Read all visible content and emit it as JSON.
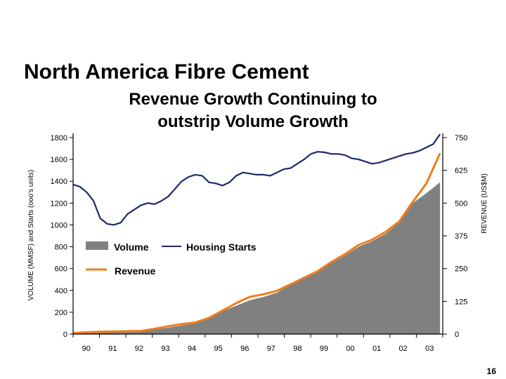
{
  "slide": {
    "title": "North America Fibre Cement",
    "subtitle_lines": [
      "Revenue Growth Continuing to",
      "outstrip Volume Growth"
    ],
    "page_number": "16"
  },
  "chart_data": {
    "type": "area",
    "x_tick_labels": [
      "90",
      "91",
      "92",
      "93",
      "94",
      "95",
      "96",
      "97",
      "98",
      "99",
      "00",
      "01",
      "02",
      "03"
    ],
    "x_range": [
      1990.0,
      2003.6
    ],
    "y_left": {
      "label": "VOLUME (MMSF) and Starts (ooo's units)",
      "range": [
        0,
        1800
      ],
      "ticks": [
        "0",
        "200",
        "400",
        "600",
        "800",
        "1000",
        "1200",
        "1400",
        "1600",
        "1800"
      ]
    },
    "y_right": {
      "label": "REVENUE (US$M)",
      "range": [
        0,
        750
      ],
      "ticks": [
        "0",
        "125",
        "250",
        "375",
        "500",
        "625",
        "750"
      ]
    },
    "grid": false,
    "colors": {
      "volume": "#808080",
      "housing_starts": "#1b2a6b",
      "revenue": "#f07d1a",
      "axis": "#000000"
    },
    "legend": [
      {
        "key": "volume",
        "label": "Volume",
        "marker": "area"
      },
      {
        "key": "housing_starts",
        "label": "Housing Starts",
        "marker": "line"
      },
      {
        "key": "revenue",
        "label": "Revenue",
        "marker": "line"
      }
    ],
    "series": [
      {
        "name": "Volume",
        "key": "volume",
        "kind": "area",
        "axis": "left",
        "x": [
          1990.0,
          1990.5,
          1991.0,
          1991.5,
          1992.0,
          1992.5,
          1993.0,
          1993.5,
          1994.0,
          1994.5,
          1995.0,
          1995.5,
          1996.0,
          1996.5,
          1997.0,
          1997.5,
          1998.0,
          1998.5,
          1999.0,
          1999.5,
          2000.0,
          2000.5,
          2001.0,
          2001.5,
          2002.0,
          2002.5,
          2003.0,
          2003.5
        ],
        "values": [
          10,
          15,
          20,
          22,
          25,
          30,
          40,
          60,
          80,
          100,
          150,
          210,
          260,
          310,
          340,
          380,
          450,
          510,
          580,
          650,
          720,
          800,
          850,
          920,
          1020,
          1200,
          1290,
          1390
        ]
      },
      {
        "name": "Revenue",
        "key": "revenue",
        "kind": "line",
        "axis": "right",
        "x": [
          1990.0,
          1990.5,
          1991.0,
          1991.5,
          1992.0,
          1992.5,
          1993.0,
          1993.5,
          1994.0,
          1994.5,
          1995.0,
          1995.5,
          1996.0,
          1996.5,
          1997.0,
          1997.5,
          1998.0,
          1998.5,
          1999.0,
          1999.5,
          2000.0,
          2000.5,
          2001.0,
          2001.5,
          2002.0,
          2002.5,
          2003.0,
          2003.5
        ],
        "values": [
          4,
          7,
          9,
          10,
          11,
          12,
          20,
          30,
          38,
          44,
          62,
          90,
          118,
          142,
          152,
          165,
          190,
          215,
          240,
          275,
          305,
          340,
          360,
          390,
          430,
          505,
          575,
          690
        ]
      },
      {
        "name": "Housing Starts",
        "key": "housing_starts",
        "kind": "line",
        "axis": "left",
        "x": [
          1990.0,
          1990.25,
          1990.5,
          1990.75,
          1991.0,
          1991.25,
          1991.5,
          1991.75,
          1992.0,
          1992.25,
          1992.5,
          1992.75,
          1993.0,
          1993.25,
          1993.5,
          1993.75,
          1994.0,
          1994.25,
          1994.5,
          1994.75,
          1995.0,
          1995.25,
          1995.5,
          1995.75,
          1996.0,
          1996.25,
          1996.5,
          1996.75,
          1997.0,
          1997.25,
          1997.5,
          1997.75,
          1998.0,
          1998.25,
          1998.5,
          1998.75,
          1999.0,
          1999.25,
          1999.5,
          1999.75,
          2000.0,
          2000.25,
          2000.5,
          2000.75,
          2001.0,
          2001.25,
          2001.5,
          2001.75,
          2002.0,
          2002.25,
          2002.5,
          2002.75,
          2003.0,
          2003.25,
          2003.5
        ],
        "values": [
          1370,
          1350,
          1300,
          1220,
          1060,
          1010,
          1000,
          1020,
          1100,
          1140,
          1180,
          1200,
          1190,
          1220,
          1260,
          1330,
          1400,
          1440,
          1460,
          1450,
          1390,
          1380,
          1360,
          1390,
          1450,
          1480,
          1470,
          1460,
          1460,
          1450,
          1480,
          1510,
          1520,
          1560,
          1600,
          1650,
          1670,
          1665,
          1650,
          1650,
          1640,
          1610,
          1600,
          1580,
          1560,
          1570,
          1590,
          1610,
          1630,
          1650,
          1660,
          1680,
          1710,
          1740,
          1830
        ]
      }
    ]
  }
}
